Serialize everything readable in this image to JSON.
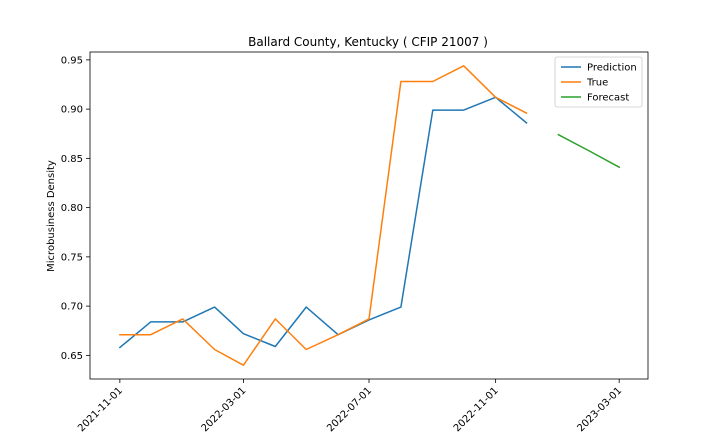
{
  "chart_data": {
    "type": "line",
    "title": "Ballard County, Kentucky ( CFIP 21007 )",
    "xlabel": "",
    "ylabel": "Microbusiness Density",
    "x_tick_labels": [
      "2021-11-01",
      "2022-03-01",
      "2022-07-01",
      "2022-11-01",
      "2023-03-01"
    ],
    "x_ticks": [
      "2021-11-01",
      "2022-03-01",
      "2022-07-01",
      "2022-11-01",
      "2023-03-01"
    ],
    "xlim": [
      "2021-10-03",
      "2023-03-29"
    ],
    "y_ticks": [
      0.65,
      0.7,
      0.75,
      0.8,
      0.85,
      0.9,
      0.95
    ],
    "y_tick_labels": [
      "0.65",
      "0.70",
      "0.75",
      "0.80",
      "0.85",
      "0.90",
      "0.95"
    ],
    "ylim": [
      0.626,
      0.958
    ],
    "grid": false,
    "legend_position": "top-right",
    "series": [
      {
        "name": "Prediction",
        "color": "#1f77b4",
        "x": [
          "2021-11-01",
          "2021-12-01",
          "2022-01-01",
          "2022-02-01",
          "2022-03-01",
          "2022-04-01",
          "2022-05-01",
          "2022-06-01",
          "2022-07-01",
          "2022-08-01",
          "2022-09-01",
          "2022-10-01",
          "2022-11-01",
          "2022-12-01"
        ],
        "values": [
          0.658,
          0.684,
          0.684,
          0.699,
          0.672,
          0.659,
          0.699,
          0.671,
          0.686,
          0.699,
          0.899,
          0.899,
          0.912,
          0.886
        ]
      },
      {
        "name": "True",
        "color": "#ff7f0e",
        "x": [
          "2021-11-01",
          "2021-12-01",
          "2022-01-01",
          "2022-02-01",
          "2022-03-01",
          "2022-04-01",
          "2022-05-01",
          "2022-06-01",
          "2022-07-01",
          "2022-08-01",
          "2022-09-01",
          "2022-10-01",
          "2022-11-01",
          "2022-12-01"
        ],
        "values": [
          0.671,
          0.671,
          0.687,
          0.656,
          0.64,
          0.687,
          0.656,
          0.671,
          0.687,
          0.928,
          0.928,
          0.944,
          0.912,
          0.896
        ]
      },
      {
        "name": "Forecast",
        "color": "#2ca02c",
        "x": [
          "2023-01-01",
          "2023-02-01",
          "2023-03-01"
        ],
        "values": [
          0.874,
          0.857,
          0.841
        ]
      }
    ]
  }
}
